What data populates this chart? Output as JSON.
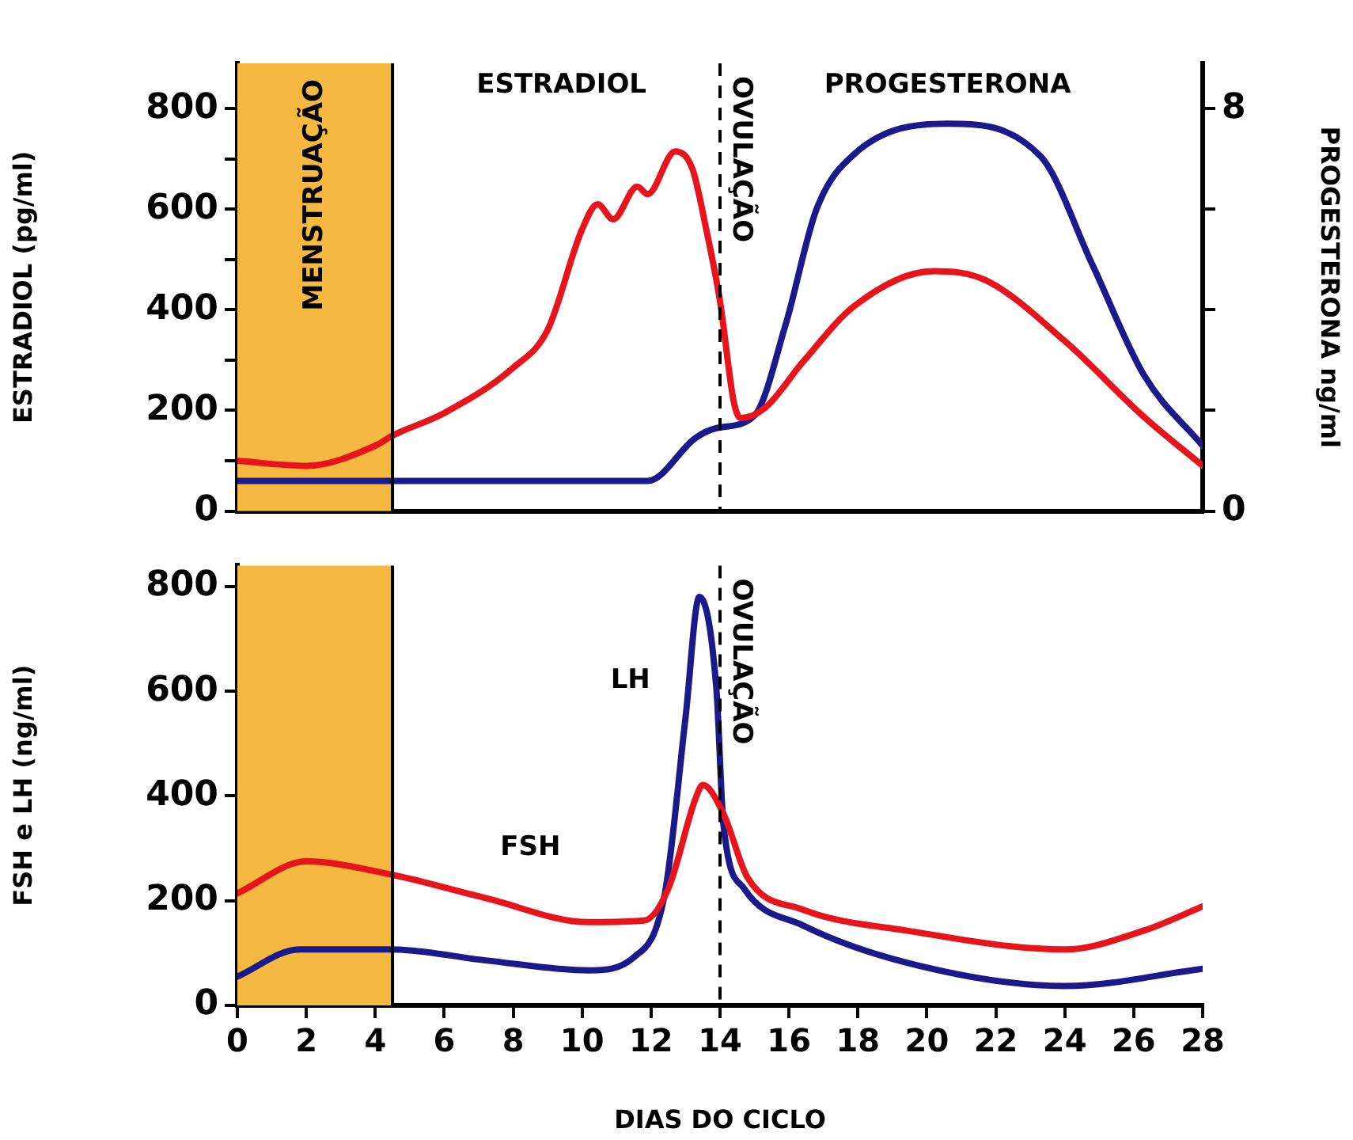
{
  "chart_data": [
    {
      "type": "line",
      "ylabel": "ESTRADIOL (pg/ml)",
      "y2label": "PROGESTERONA ng/ml",
      "xlim": [
        0,
        28
      ],
      "ylim": [
        0,
        890
      ],
      "yticks": [
        0,
        {
          "value": 100,
          "label": null
        },
        200,
        {
          "value": 300,
          "label": null
        },
        400,
        {
          "value": 500,
          "label": null
        },
        600,
        {
          "value": 700,
          "label": null
        },
        800
      ],
      "y2lim": [
        0,
        8.9
      ],
      "y2ticks": [
        0,
        {
          "value": 2,
          "label": null
        },
        {
          "value": 4,
          "label": null
        },
        {
          "value": 6,
          "label": null
        },
        8
      ],
      "tick_labels": "y",
      "legend": false,
      "grid": false,
      "marker": "none",
      "series": [
        {
          "name": "ESTRADIOL",
          "color": "#e8141b",
          "x": [
            0,
            2,
            4,
            4.5,
            6,
            8,
            9,
            10,
            10.45,
            10.9,
            11.6,
            11.9,
            12.7,
            13.2,
            13.6,
            14,
            14.4,
            14.6,
            15.3,
            16.4,
            17.9,
            20.2,
            21.7,
            24,
            26.3,
            28
          ],
          "values": [
            100,
            90,
            130,
            150,
            195,
            285,
            360,
            560,
            610,
            580,
            645,
            630,
            715,
            680,
            560,
            417,
            217,
            185,
            205,
            296,
            408,
            477,
            459,
            338,
            187,
            90
          ]
        },
        {
          "name": "PROGESTERONA",
          "color": "#1a1a8c",
          "axis": "y2",
          "x": [
            0,
            6,
            11.9,
            13.3,
            13.9,
            15,
            15.9,
            16.8,
            17.9,
            20.6,
            23.3,
            24.8,
            26.3,
            28
          ],
          "values": [
            0.6,
            0.6,
            0.6,
            1.46,
            1.65,
            1.9,
            3.7,
            6,
            7.1,
            7.7,
            7.05,
            4.9,
            2.7,
            1.3
          ]
        }
      ],
      "bands": [
        {
          "axis": "x",
          "from": 0,
          "to": 4.5,
          "label": "MENSTRUAÇÃO",
          "color": "#f5b942"
        }
      ],
      "ref_lines": [
        {
          "axis": "x",
          "value": 4.5,
          "line_style": "solid"
        },
        {
          "axis": "x",
          "value": 14,
          "label": "OVULAÇÃO",
          "line_style": "dashed"
        }
      ]
    },
    {
      "type": "line",
      "xlabel": "DIAS DO CICLO",
      "ylabel": "FSH e LH (ng/ml)",
      "xlim": [
        0,
        28
      ],
      "xticks": [
        0,
        2,
        4,
        6,
        8,
        10,
        12,
        14,
        16,
        18,
        20,
        22,
        24,
        26,
        28
      ],
      "ylim": [
        0,
        840
      ],
      "yticks": [
        0,
        200,
        400,
        600,
        800
      ],
      "legend": false,
      "grid": false,
      "marker": "none",
      "series": [
        {
          "name": "FSH",
          "color": "#e8141b",
          "x": [
            0,
            2,
            4.45,
            7.2,
            10.2,
            11.8,
            12.5,
            13.3,
            13.5,
            14.1,
            14.8,
            16.4,
            19.4,
            24,
            26.3,
            28
          ],
          "values": [
            214,
            275,
            250,
            205,
            159,
            162,
            223,
            397,
            421,
            366,
            244,
            183,
            143,
            107,
            143,
            189
          ]
        },
        {
          "name": "LH",
          "color": "#1a1a8c",
          "x": [
            0,
            1.8,
            4.45,
            7.2,
            10.2,
            11.5,
            12.4,
            13,
            13.4,
            13.9,
            14.1,
            14.7,
            16.4,
            19.4,
            24,
            28
          ],
          "values": [
            55,
            107,
            107,
            86,
            67,
            92,
            214,
            550,
            780,
            600,
            345,
            223,
            153,
            82,
            37,
            70
          ]
        }
      ],
      "bands": [
        {
          "axis": "x",
          "from": 0,
          "to": 4.5,
          "color": "#f5b942"
        }
      ],
      "ref_lines": [
        {
          "axis": "x",
          "value": 4.5,
          "line_style": "solid"
        },
        {
          "axis": "x",
          "value": 14,
          "label": "OVULAÇÃO",
          "line_style": "dashed"
        }
      ]
    }
  ]
}
